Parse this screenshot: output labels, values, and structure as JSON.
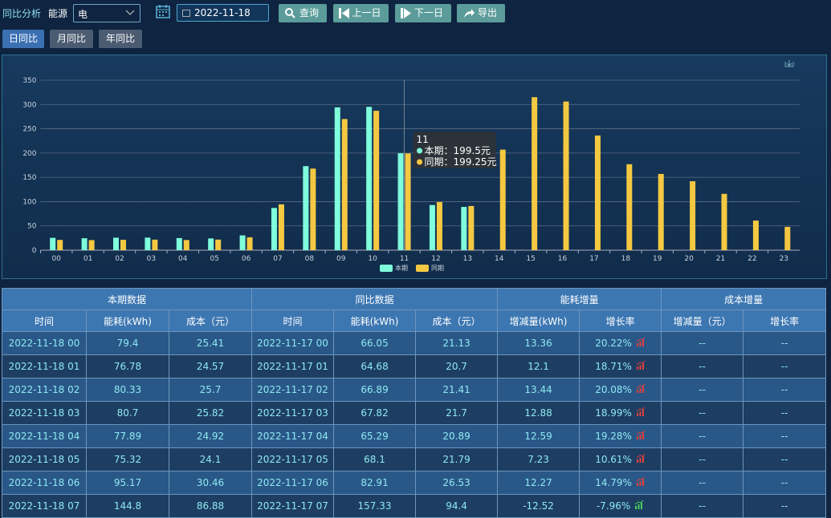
{
  "toolbar": {
    "title": "同比分析",
    "energy_label": "能源",
    "energy_value": "电",
    "date": "2022-11-18",
    "buttons": [
      "查询",
      "上一日",
      "下一日",
      "导出"
    ]
  },
  "tabs": [
    "日同比",
    "月同比",
    "年同比"
  ],
  "chart_data": {
    "type": "bar",
    "categories": [
      "00",
      "01",
      "02",
      "03",
      "04",
      "05",
      "06",
      "07",
      "08",
      "09",
      "10",
      "11",
      "12",
      "13",
      "14",
      "15",
      "16",
      "17",
      "18",
      "19",
      "20",
      "21",
      "22",
      "23"
    ],
    "series": [
      {
        "name": "本期",
        "color": "#7fffdc",
        "values": [
          25.41,
          24.57,
          25.7,
          25.82,
          24.92,
          24.1,
          30.46,
          86.88,
          173,
          294,
          295,
          199.5,
          93,
          89,
          null,
          null,
          null,
          null,
          null,
          null,
          null,
          null,
          null,
          null
        ]
      },
      {
        "name": "同期",
        "color": "#f5c842",
        "values": [
          21.13,
          20.7,
          21.41,
          21.7,
          20.89,
          21.79,
          26.53,
          94.4,
          168,
          270,
          287,
          199.25,
          99,
          91,
          207,
          315,
          306,
          236,
          177,
          157,
          142,
          116,
          61,
          48
        ]
      }
    ],
    "ylim": [
      0,
      350
    ],
    "yticks": [
      0,
      50,
      100,
      150,
      200,
      250,
      300,
      350
    ],
    "grid": true,
    "legend": "bottom",
    "tooltip": {
      "title": "11",
      "items": [
        "本期：199.5元",
        "同期：199.25元"
      ]
    }
  },
  "table": {
    "groups": [
      "本期数据",
      "同比数据",
      "能耗增量",
      "成本增量"
    ],
    "columns": [
      "时间",
      "能耗(kWh)",
      "成本（元）",
      "时间",
      "能耗(kWh)",
      "成本（元）",
      "增减量(kWh)",
      "增长率",
      "增减量（元）",
      "增长率"
    ],
    "rows": [
      [
        "2022-11-18 00",
        "79.4",
        "25.41",
        "2022-11-17 00",
        "66.05",
        "21.13",
        "13.36",
        "20.22%",
        "--",
        "--"
      ],
      [
        "2022-11-18 01",
        "76.78",
        "24.57",
        "2022-11-17 01",
        "64.68",
        "20.7",
        "12.1",
        "18.71%",
        "--",
        "--"
      ],
      [
        "2022-11-18 02",
        "80.33",
        "25.7",
        "2022-11-17 02",
        "66.89",
        "21.41",
        "13.44",
        "20.08%",
        "--",
        "--"
      ],
      [
        "2022-11-18 03",
        "80.7",
        "25.82",
        "2022-11-17 03",
        "67.82",
        "21.7",
        "12.88",
        "18.99%",
        "--",
        "--"
      ],
      [
        "2022-11-18 04",
        "77.89",
        "24.92",
        "2022-11-17 04",
        "65.29",
        "20.89",
        "12.59",
        "19.28%",
        "--",
        "--"
      ],
      [
        "2022-11-18 05",
        "75.32",
        "24.1",
        "2022-11-17 05",
        "68.1",
        "21.79",
        "7.23",
        "10.61%",
        "--",
        "--"
      ],
      [
        "2022-11-18 06",
        "95.17",
        "30.46",
        "2022-11-17 06",
        "82.91",
        "26.53",
        "12.27",
        "14.79%",
        "--",
        "--"
      ],
      [
        "2022-11-18 07",
        "144.8",
        "86.88",
        "2022-11-17 07",
        "157.33",
        "94.4",
        "-12.52",
        "-7.96%",
        "--",
        "--"
      ]
    ]
  }
}
